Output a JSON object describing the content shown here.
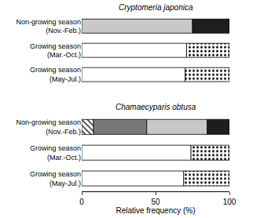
{
  "chart_data": [
    {
      "type": "bar",
      "title": "Cryptomeria japonica",
      "orientation": "horizontal",
      "stacked": true,
      "tick_labels": "y",
      "grid": false,
      "categories": [
        "Non-growing season (Nov.-Feb.)",
        "Growing season (Mar.-Oct.)",
        "Growing season (May-Jul.)"
      ],
      "xlim": [
        0,
        100
      ],
      "series": [
        {
          "color": "#ffffff",
          "marker": "solid",
          "values": [
            null,
            71,
            70
          ]
        },
        {
          "color": "#c8c8c8",
          "marker": "solid",
          "values": [
            75,
            null,
            null
          ]
        },
        {
          "color": "#1e1e1e",
          "marker": "solid",
          "values": [
            25,
            null,
            null
          ]
        },
        {
          "color": "#ffffff",
          "marker": "dots",
          "values": [
            null,
            29,
            30
          ]
        }
      ]
    },
    {
      "type": "bar",
      "title": "Chamaecyparis obtusa",
      "orientation": "horizontal",
      "stacked": true,
      "grid": false,
      "xlabel": "Relative frequency (%)",
      "categories": [
        "Non-growing season (Nov.-Feb.)",
        "Growing season (Mar.-Oct.)",
        "Growing season (May-Jul.)"
      ],
      "xlim": [
        0,
        100
      ],
      "xticks": [
        0,
        50,
        100
      ],
      "series": [
        {
          "color": "#ffffff",
          "marker": "hatch",
          "values": [
            8,
            null,
            null
          ]
        },
        {
          "color": "#787878",
          "marker": "solid",
          "values": [
            36,
            null,
            null
          ]
        },
        {
          "color": "#ffffff",
          "marker": "solid",
          "values": [
            null,
            74,
            69
          ]
        },
        {
          "color": "#c8c8c8",
          "marker": "solid",
          "values": [
            41,
            null,
            null
          ]
        },
        {
          "color": "#1e1e1e",
          "marker": "solid",
          "values": [
            15,
            null,
            null
          ]
        },
        {
          "color": "#ffffff",
          "marker": "dots",
          "values": [
            null,
            26,
            31
          ]
        }
      ]
    }
  ]
}
